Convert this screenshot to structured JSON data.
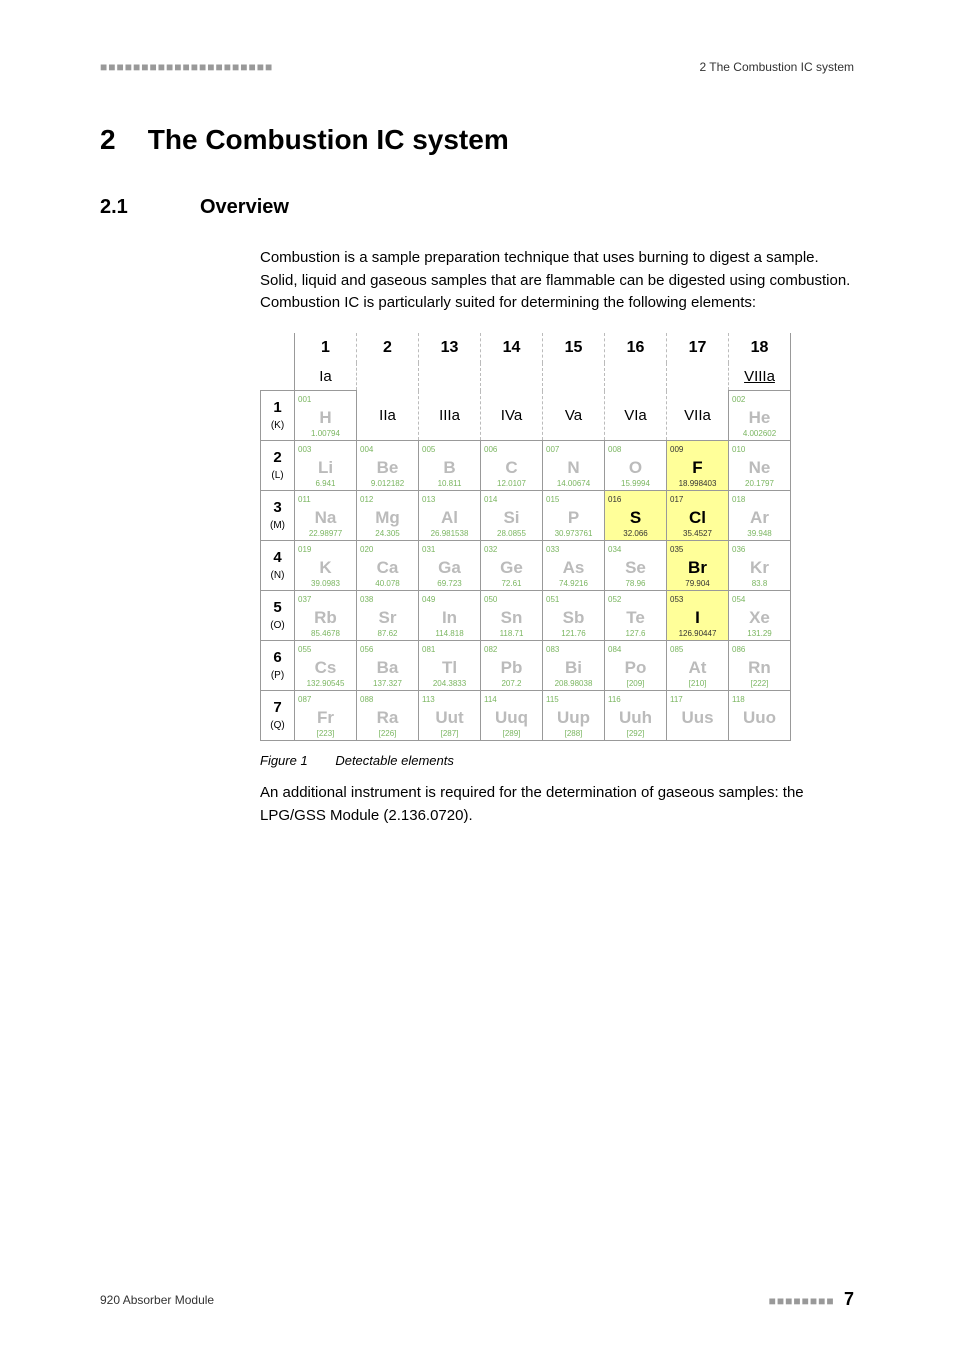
{
  "header": {
    "dots_left": "■■■■■■■■■■■■■■■■■■■■■",
    "right": "2 The Combustion IC system"
  },
  "chapter": {
    "num": "2",
    "title": "The Combustion IC system"
  },
  "section": {
    "num": "2.1",
    "title": "Overview"
  },
  "para1": "Combustion is a sample preparation technique that uses burning to digest a sample. Solid, liquid and gaseous samples that are flammable can be digested using combustion. Combustion IC is particularly suited for determining the following elements:",
  "ptable": {
    "group_nums": [
      "1",
      "2",
      "13",
      "14",
      "15",
      "16",
      "17",
      "18"
    ],
    "group_labels": [
      "Ia",
      "IIa",
      "IIIa",
      "IVa",
      "Va",
      "VIa",
      "VIIa",
      "VIIIa"
    ],
    "periods": [
      {
        "n": "1",
        "shell": "(K)"
      },
      {
        "n": "2",
        "shell": "(L)"
      },
      {
        "n": "3",
        "shell": "(M)"
      },
      {
        "n": "4",
        "shell": "(N)"
      },
      {
        "n": "5",
        "shell": "(O)"
      },
      {
        "n": "6",
        "shell": "(P)"
      },
      {
        "n": "7",
        "shell": "(Q)"
      }
    ],
    "rows": [
      [
        {
          "z": "001",
          "sym": "H",
          "mass": "1.00794",
          "hl": false
        },
        null,
        null,
        null,
        null,
        null,
        null,
        {
          "z": "002",
          "sym": "He",
          "mass": "4.002602",
          "hl": false
        }
      ],
      [
        {
          "z": "003",
          "sym": "Li",
          "mass": "6.941",
          "hl": false
        },
        {
          "z": "004",
          "sym": "Be",
          "mass": "9.012182",
          "hl": false
        },
        {
          "z": "005",
          "sym": "B",
          "mass": "10.811",
          "hl": false
        },
        {
          "z": "006",
          "sym": "C",
          "mass": "12.0107",
          "hl": false
        },
        {
          "z": "007",
          "sym": "N",
          "mass": "14.00674",
          "hl": false
        },
        {
          "z": "008",
          "sym": "O",
          "mass": "15.9994",
          "hl": false
        },
        {
          "z": "009",
          "sym": "F",
          "mass": "18.998403",
          "hl": true
        },
        {
          "z": "010",
          "sym": "Ne",
          "mass": "20.1797",
          "hl": false
        }
      ],
      [
        {
          "z": "011",
          "sym": "Na",
          "mass": "22.98977",
          "hl": false
        },
        {
          "z": "012",
          "sym": "Mg",
          "mass": "24.305",
          "hl": false
        },
        {
          "z": "013",
          "sym": "Al",
          "mass": "26.981538",
          "hl": false
        },
        {
          "z": "014",
          "sym": "Si",
          "mass": "28.0855",
          "hl": false
        },
        {
          "z": "015",
          "sym": "P",
          "mass": "30.973761",
          "hl": false
        },
        {
          "z": "016",
          "sym": "S",
          "mass": "32.066",
          "hl": true
        },
        {
          "z": "017",
          "sym": "Cl",
          "mass": "35.4527",
          "hl": true
        },
        {
          "z": "018",
          "sym": "Ar",
          "mass": "39.948",
          "hl": false
        }
      ],
      [
        {
          "z": "019",
          "sym": "K",
          "mass": "39.0983",
          "hl": false
        },
        {
          "z": "020",
          "sym": "Ca",
          "mass": "40.078",
          "hl": false
        },
        {
          "z": "031",
          "sym": "Ga",
          "mass": "69.723",
          "hl": false
        },
        {
          "z": "032",
          "sym": "Ge",
          "mass": "72.61",
          "hl": false
        },
        {
          "z": "033",
          "sym": "As",
          "mass": "74.9216",
          "hl": false
        },
        {
          "z": "034",
          "sym": "Se",
          "mass": "78.96",
          "hl": false
        },
        {
          "z": "035",
          "sym": "Br",
          "mass": "79.904",
          "hl": true
        },
        {
          "z": "036",
          "sym": "Kr",
          "mass": "83.8",
          "hl": false
        }
      ],
      [
        {
          "z": "037",
          "sym": "Rb",
          "mass": "85.4678",
          "hl": false
        },
        {
          "z": "038",
          "sym": "Sr",
          "mass": "87.62",
          "hl": false
        },
        {
          "z": "049",
          "sym": "In",
          "mass": "114.818",
          "hl": false
        },
        {
          "z": "050",
          "sym": "Sn",
          "mass": "118.71",
          "hl": false
        },
        {
          "z": "051",
          "sym": "Sb",
          "mass": "121.76",
          "hl": false
        },
        {
          "z": "052",
          "sym": "Te",
          "mass": "127.6",
          "hl": false
        },
        {
          "z": "053",
          "sym": "I",
          "mass": "126.90447",
          "hl": true
        },
        {
          "z": "054",
          "sym": "Xe",
          "mass": "131.29",
          "hl": false
        }
      ],
      [
        {
          "z": "055",
          "sym": "Cs",
          "mass": "132.90545",
          "hl": false
        },
        {
          "z": "056",
          "sym": "Ba",
          "mass": "137.327",
          "hl": false
        },
        {
          "z": "081",
          "sym": "Tl",
          "mass": "204.3833",
          "hl": false
        },
        {
          "z": "082",
          "sym": "Pb",
          "mass": "207.2",
          "hl": false
        },
        {
          "z": "083",
          "sym": "Bi",
          "mass": "208.98038",
          "hl": false
        },
        {
          "z": "084",
          "sym": "Po",
          "mass": "[209]",
          "hl": false
        },
        {
          "z": "085",
          "sym": "At",
          "mass": "[210]",
          "hl": false
        },
        {
          "z": "086",
          "sym": "Rn",
          "mass": "[222]",
          "hl": false
        }
      ],
      [
        {
          "z": "087",
          "sym": "Fr",
          "mass": "[223]",
          "hl": false
        },
        {
          "z": "088",
          "sym": "Ra",
          "mass": "[226]",
          "hl": false
        },
        {
          "z": "113",
          "sym": "Uut",
          "mass": "[287]",
          "hl": false
        },
        {
          "z": "114",
          "sym": "Uuq",
          "mass": "[289]",
          "hl": false
        },
        {
          "z": "115",
          "sym": "Uup",
          "mass": "[288]",
          "hl": false
        },
        {
          "z": "116",
          "sym": "Uuh",
          "mass": "[292]",
          "hl": false
        },
        {
          "z": "117",
          "sym": "Uus",
          "mass": "",
          "hl": false
        },
        {
          "z": "118",
          "sym": "Uuo",
          "mass": "",
          "hl": false
        }
      ]
    ]
  },
  "figure": {
    "label": "Figure 1",
    "caption": "Detectable elements"
  },
  "para2": "An additional instrument is required for the determination of gaseous samples: the LPG/GSS Module (2.136.0720).",
  "footer": {
    "left": "920 Absorber Module",
    "dots": "■■■■■■■■",
    "page": "7"
  },
  "colors": {
    "highlight_bg": "#ffff99",
    "faded_text": "#bbbbbb",
    "green_text": "#7bb661",
    "border": "#999999"
  }
}
